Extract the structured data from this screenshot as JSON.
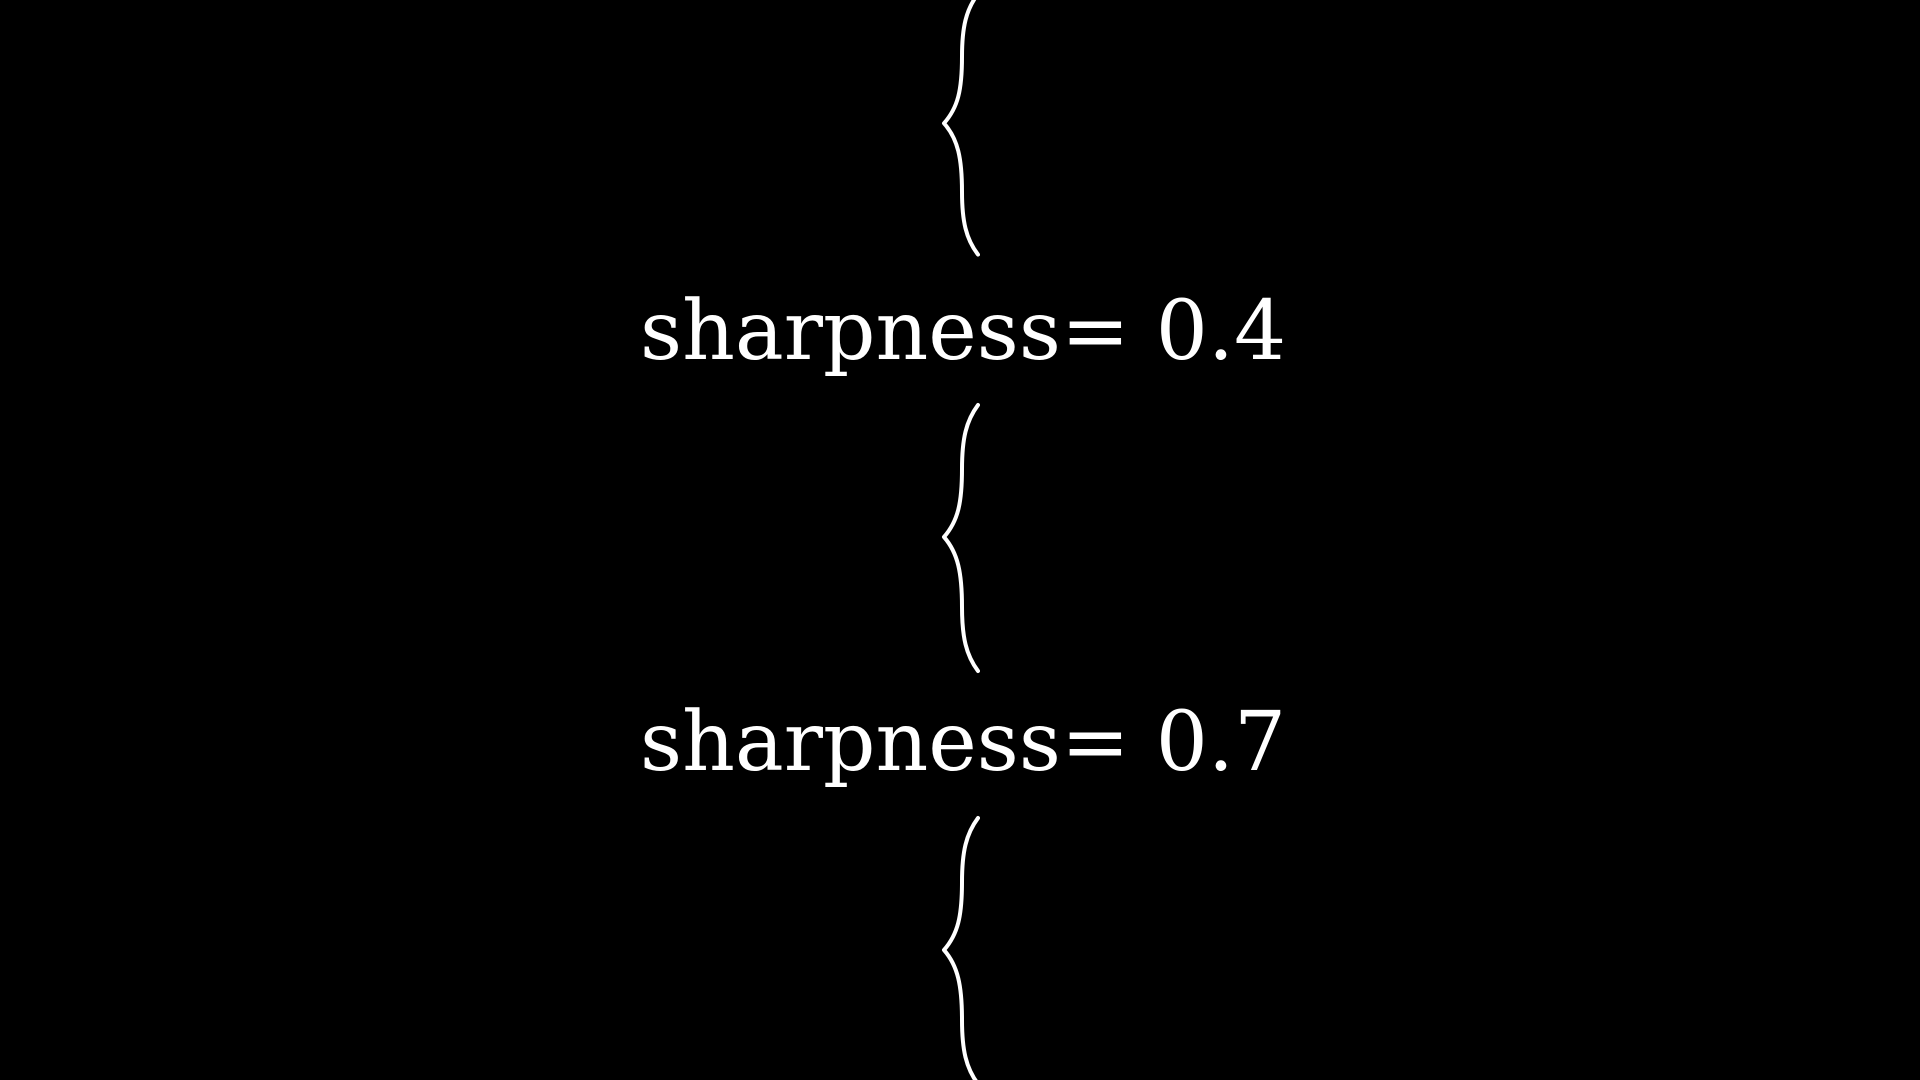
{
  "colors": {
    "background": "#000000",
    "foreground": "#ffffff"
  },
  "labels": [
    {
      "text": "sharpness= 0.4"
    },
    {
      "text": "sharpness= 0.7"
    }
  ],
  "icons": [
    "curly-brace-icon",
    "curly-brace-icon",
    "curly-brace-icon"
  ]
}
